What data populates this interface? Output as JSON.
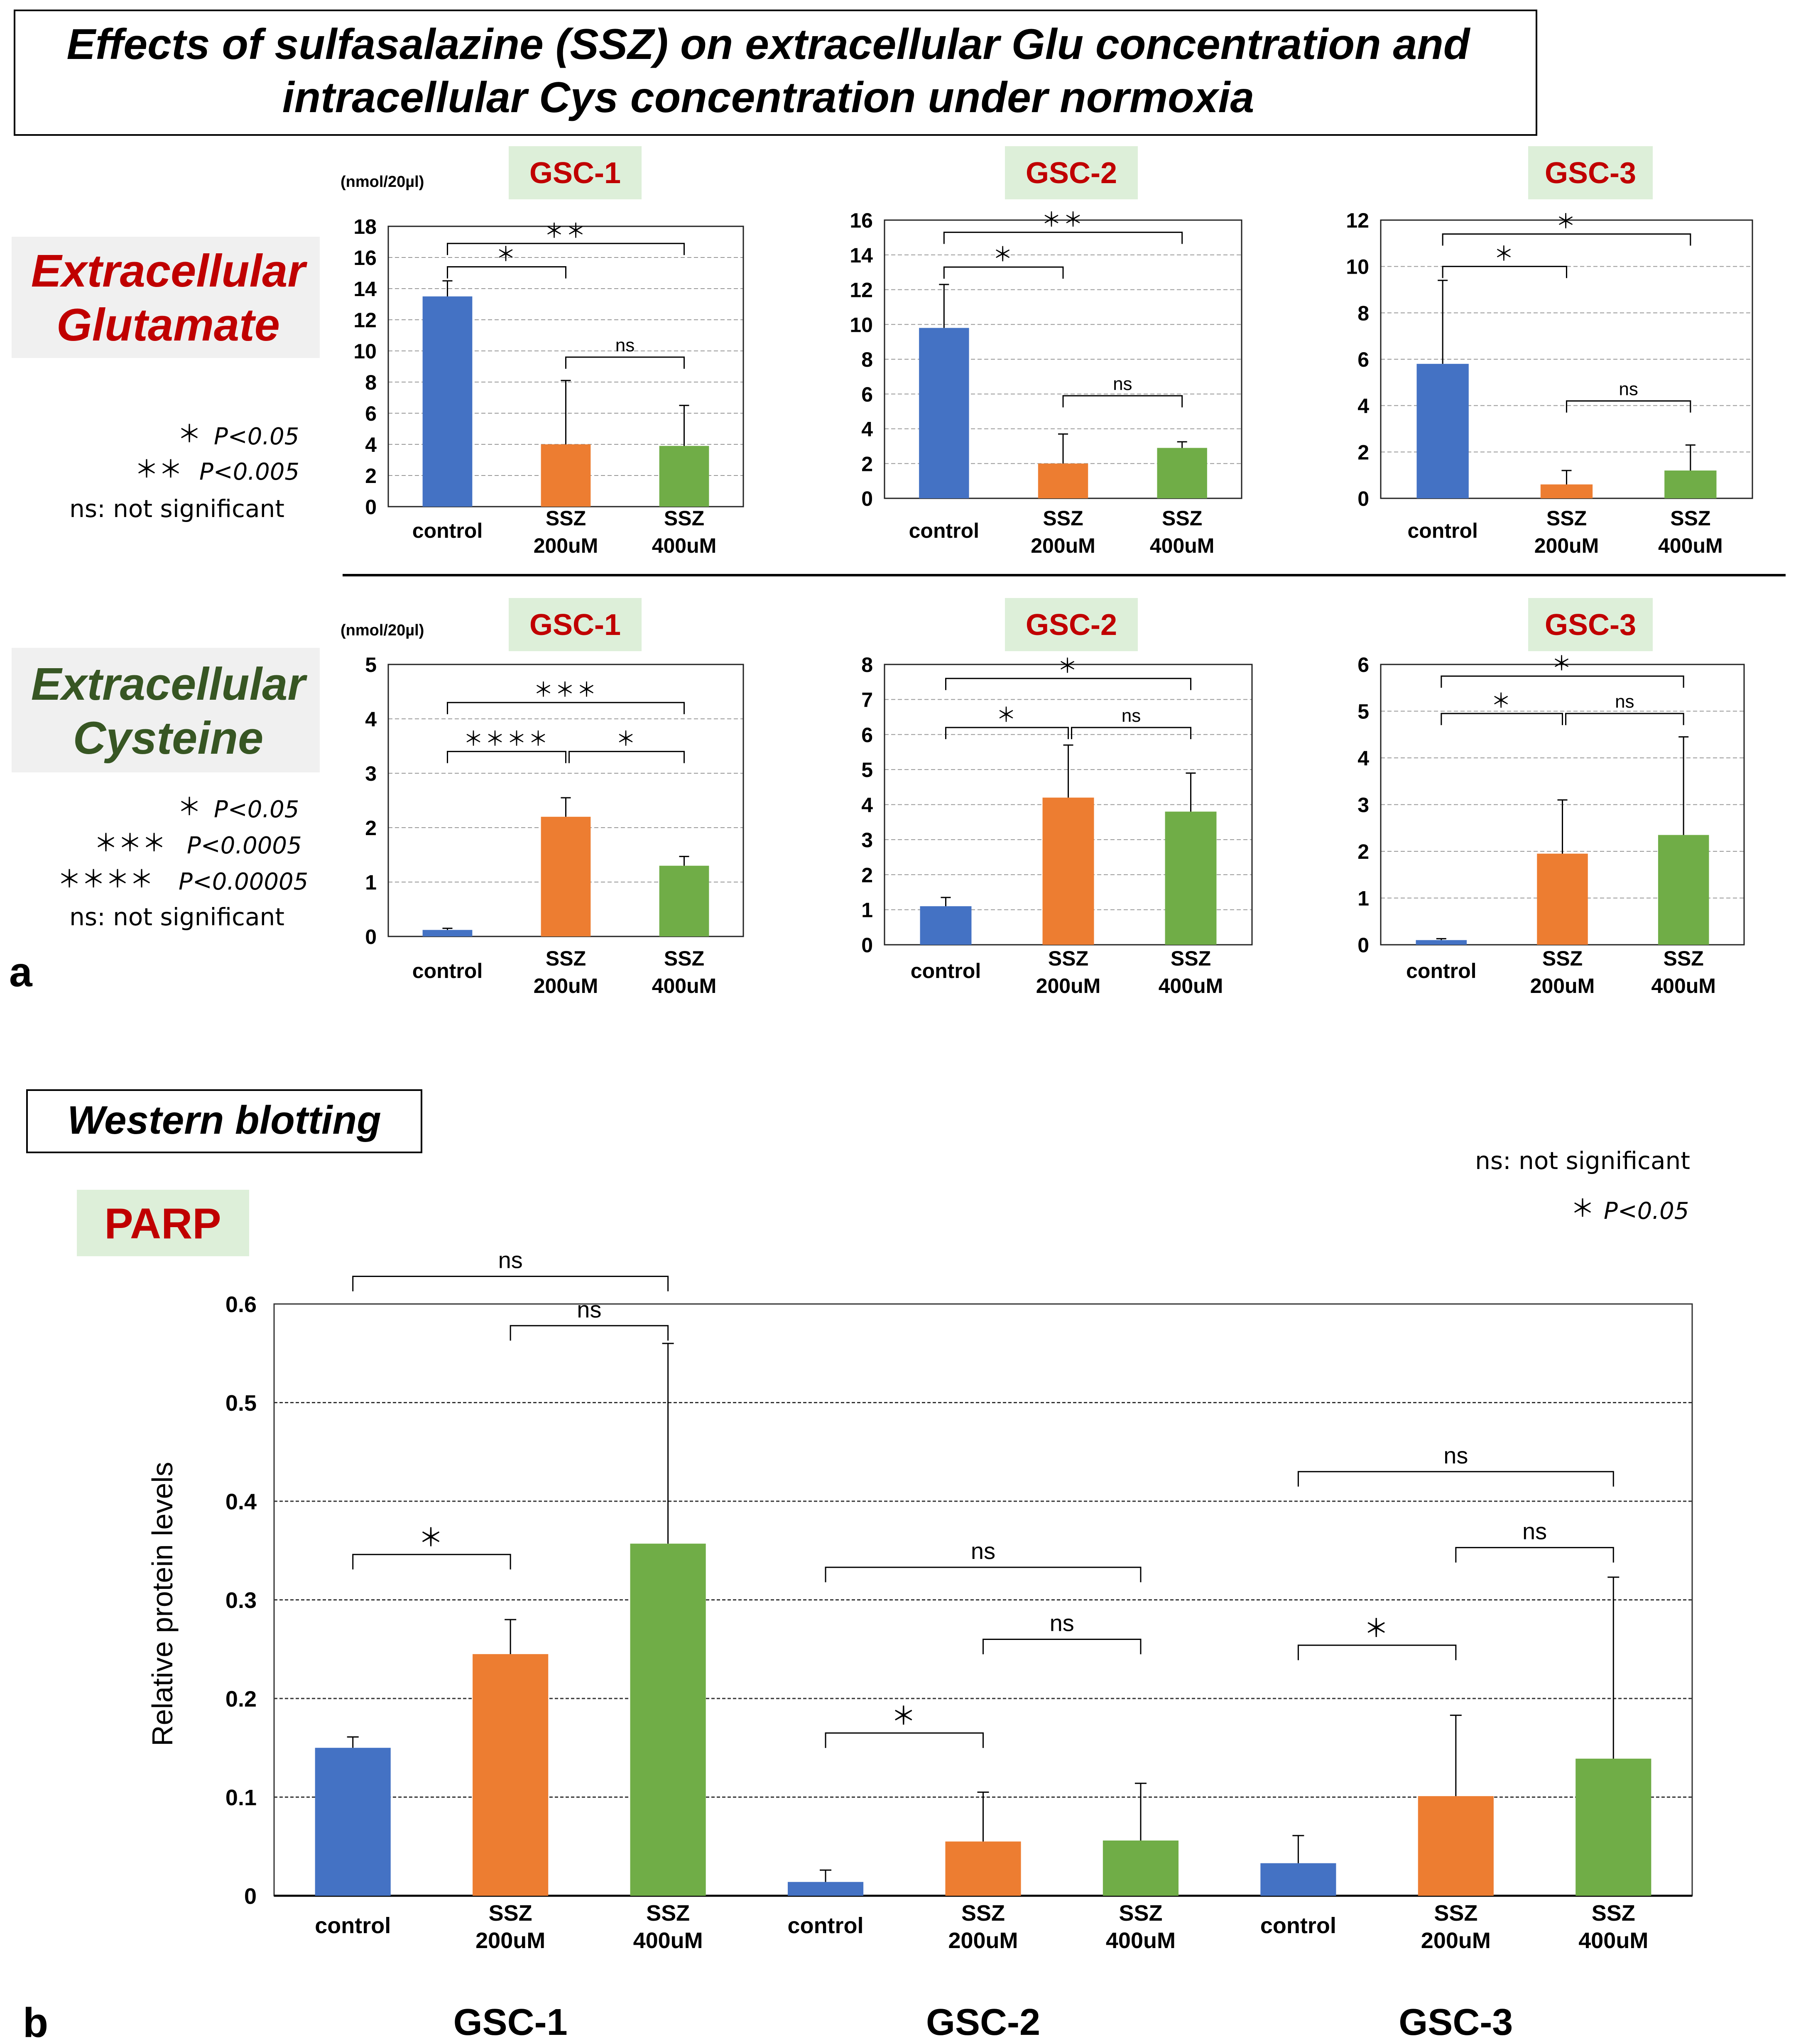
{
  "title": {
    "line1": "Effects of sulfasalazine (SSZ) on extracellular Glu concentration and",
    "line2": "intracellular Cys concentration under normoxia"
  },
  "colors": {
    "control": "#4472C4",
    "ssz200": "#ED7D31",
    "ssz400": "#70AD47",
    "label_red": "#C00000",
    "label_green": "#375623",
    "label_bg": "#DDEFD9"
  },
  "panel_a": {
    "letter": "a",
    "glu_label": [
      "Extracellular",
      "Glutamate"
    ],
    "cys_label": [
      "Extracellular",
      "Cysteine"
    ],
    "unit": "(nmol/20µl)",
    "glu_legend": [
      {
        "stars": "＊",
        "text": "P<0.05"
      },
      {
        "stars": "＊＊",
        "text": "P<0.005"
      },
      {
        "stars": "",
        "text": "ns: not significant"
      }
    ],
    "cys_legend": [
      {
        "stars": "＊",
        "text": "P<0.05"
      },
      {
        "stars": "＊＊＊",
        "text": "P<0.0005"
      },
      {
        "stars": "＊＊＊＊",
        "text": "P<0.00005"
      },
      {
        "stars": "",
        "text": "ns: not significant"
      }
    ]
  },
  "panel_b": {
    "letter": "b",
    "box_title": "Western blotting",
    "protein": "PARP",
    "legend_ns": "ns: not significant",
    "legend_star": "＊",
    "legend_star_text": "P<0.05",
    "group_labels": [
      "GSC-1",
      "GSC-2",
      "GSC-3"
    ]
  },
  "chart_data": [
    {
      "type": "bar",
      "id": "glu-gsc1",
      "title": "GSC-1",
      "ylabel": "(nmol/20µl)",
      "categories": [
        [
          "control"
        ],
        [
          "SSZ",
          "200uM"
        ],
        [
          "SSZ",
          "400uM"
        ]
      ],
      "values": [
        13.5,
        4.0,
        3.9
      ],
      "errors": [
        1.0,
        4.1,
        2.6
      ],
      "ylim": [
        0,
        18
      ],
      "yticks": [
        0,
        2,
        4,
        6,
        8,
        10,
        12,
        14,
        16,
        18
      ],
      "brackets": [
        {
          "from": 0,
          "to": 2,
          "label": "＊＊",
          "level": 16.9
        },
        {
          "from": 0,
          "to": 1,
          "label": "＊",
          "level": 15.4
        },
        {
          "from": 1,
          "to": 2,
          "label": "ns",
          "level": 9.6
        }
      ]
    },
    {
      "type": "bar",
      "id": "glu-gsc2",
      "title": "GSC-2",
      "categories": [
        [
          "control"
        ],
        [
          "SSZ",
          "200uM"
        ],
        [
          "SSZ",
          "400uM"
        ]
      ],
      "values": [
        9.8,
        2.0,
        2.9
      ],
      "errors": [
        2.5,
        1.7,
        0.35
      ],
      "ylim": [
        0,
        16
      ],
      "yticks": [
        0,
        2,
        4,
        6,
        8,
        10,
        12,
        14,
        16
      ],
      "brackets": [
        {
          "from": 0,
          "to": 2,
          "label": "＊＊",
          "level": 15.3
        },
        {
          "from": 0,
          "to": 1,
          "label": "＊",
          "level": 13.3
        },
        {
          "from": 1,
          "to": 2,
          "label": "ns",
          "level": 5.9
        }
      ]
    },
    {
      "type": "bar",
      "id": "glu-gsc3",
      "title": "GSC-3",
      "categories": [
        [
          "control"
        ],
        [
          "SSZ",
          "200uM"
        ],
        [
          "SSZ",
          "400uM"
        ]
      ],
      "values": [
        5.8,
        0.6,
        1.2
      ],
      "errors": [
        3.6,
        0.6,
        1.1
      ],
      "ylim": [
        0,
        12
      ],
      "yticks": [
        0,
        2,
        4,
        6,
        8,
        10,
        12
      ],
      "brackets": [
        {
          "from": 0,
          "to": 2,
          "label": "＊",
          "level": 11.4
        },
        {
          "from": 0,
          "to": 1,
          "label": "＊",
          "level": 10.0
        },
        {
          "from": 1,
          "to": 2,
          "label": "ns",
          "level": 4.2
        }
      ]
    },
    {
      "type": "bar",
      "id": "cys-gsc1",
      "title": "GSC-1",
      "ylabel": "(nmol/20µl)",
      "categories": [
        [
          "control"
        ],
        [
          "SSZ",
          "200uM"
        ],
        [
          "SSZ",
          "400uM"
        ]
      ],
      "values": [
        0.12,
        2.2,
        1.3
      ],
      "errors": [
        0.03,
        0.35,
        0.17
      ],
      "ylim": [
        0,
        5
      ],
      "yticks": [
        0,
        1,
        2,
        3,
        4,
        5
      ],
      "brackets": [
        {
          "from": 0,
          "to": 2,
          "label": "＊＊＊",
          "level": 4.3
        },
        {
          "from": 0,
          "to": 1,
          "label": "＊＊＊＊",
          "level": 3.4
        },
        {
          "from": 1,
          "to": 2,
          "label": "＊",
          "level": 3.4
        }
      ]
    },
    {
      "type": "bar",
      "id": "cys-gsc2",
      "title": "GSC-2",
      "categories": [
        [
          "control"
        ],
        [
          "SSZ",
          "200uM"
        ],
        [
          "SSZ",
          "400uM"
        ]
      ],
      "values": [
        1.1,
        4.2,
        3.8
      ],
      "errors": [
        0.25,
        1.5,
        1.1
      ],
      "ylim": [
        0,
        8
      ],
      "yticks": [
        0,
        1,
        2,
        3,
        4,
        5,
        6,
        7,
        8
      ],
      "brackets": [
        {
          "from": 0,
          "to": 2,
          "label": "＊",
          "level": 7.6
        },
        {
          "from": 0,
          "to": 1,
          "label": "＊",
          "level": 6.2
        },
        {
          "from": 1,
          "to": 2,
          "label": "ns",
          "level": 6.2
        }
      ]
    },
    {
      "type": "bar",
      "id": "cys-gsc3",
      "title": "GSC-3",
      "categories": [
        [
          "control"
        ],
        [
          "SSZ",
          "200uM"
        ],
        [
          "SSZ",
          "400uM"
        ]
      ],
      "values": [
        0.1,
        1.95,
        2.35
      ],
      "errors": [
        0.03,
        1.15,
        2.1
      ],
      "ylim": [
        0,
        6
      ],
      "yticks": [
        0,
        1,
        2,
        3,
        4,
        5,
        6
      ],
      "brackets": [
        {
          "from": 0,
          "to": 2,
          "label": "＊",
          "level": 5.75
        },
        {
          "from": 0,
          "to": 1,
          "label": "＊",
          "level": 4.95
        },
        {
          "from": 1,
          "to": 2,
          "label": "ns",
          "level": 4.95
        }
      ]
    },
    {
      "type": "bar",
      "id": "parp",
      "title": "PARP",
      "ylabel": "Relative protein levels",
      "categories": [
        [
          "control"
        ],
        [
          "SSZ",
          "200uM"
        ],
        [
          "SSZ",
          "400uM"
        ],
        [
          "control"
        ],
        [
          "SSZ",
          "200uM"
        ],
        [
          "SSZ",
          "400uM"
        ],
        [
          "control"
        ],
        [
          "SSZ",
          "200uM"
        ],
        [
          "SSZ",
          "400uM"
        ]
      ],
      "groups": [
        "GSC-1",
        "GSC-2",
        "GSC-3"
      ],
      "values": [
        0.15,
        0.245,
        0.357,
        0.014,
        0.055,
        0.056,
        0.033,
        0.101,
        0.139
      ],
      "errors": [
        0.011,
        0.035,
        0.203,
        0.012,
        0.05,
        0.058,
        0.028,
        0.082,
        0.184
      ],
      "ylim": [
        0,
        0.6
      ],
      "yticks": [
        0,
        0.1,
        0.2,
        0.3,
        0.4,
        0.5,
        0.6
      ],
      "brackets": [
        {
          "from": 0,
          "to": 2,
          "label": "ns",
          "level": 0.628
        },
        {
          "from": 1,
          "to": 2,
          "label": "ns",
          "level": 0.578
        },
        {
          "from": 0,
          "to": 1,
          "label": "＊",
          "level": 0.346
        },
        {
          "from": 3,
          "to": 5,
          "label": "ns",
          "level": 0.333
        },
        {
          "from": 4,
          "to": 5,
          "label": "ns",
          "level": 0.26
        },
        {
          "from": 3,
          "to": 4,
          "label": "＊",
          "level": 0.165
        },
        {
          "from": 6,
          "to": 8,
          "label": "ns",
          "level": 0.43
        },
        {
          "from": 7,
          "to": 8,
          "label": "ns",
          "level": 0.353
        },
        {
          "from": 6,
          "to": 7,
          "label": "＊",
          "level": 0.254
        }
      ]
    }
  ]
}
